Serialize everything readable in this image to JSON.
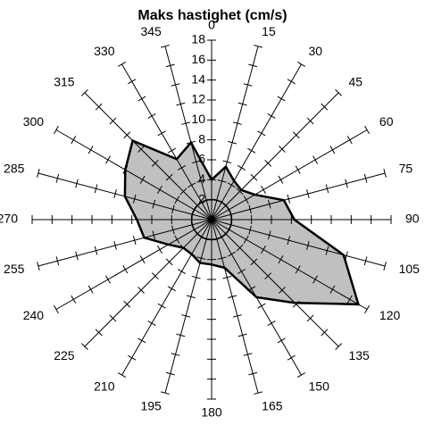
{
  "chart_data": {
    "type": "radar",
    "title": "Maks hastighet (cm/s)",
    "categories": [
      "0",
      "15",
      "30",
      "45",
      "60",
      "75",
      "90",
      "105",
      "120",
      "135",
      "150",
      "165",
      "180",
      "195",
      "210",
      "225",
      "240",
      "255",
      "270",
      "285",
      "300",
      "315",
      "330",
      "345"
    ],
    "values": [
      4,
      5.5,
      4.5,
      4.2,
      5,
      7.5,
      8.3,
      13.7,
      17,
      11.8,
      9,
      5,
      4.5,
      4.5,
      4,
      4,
      5,
      7,
      7.5,
      9,
      10,
      11.2,
      7,
      8
    ],
    "color": "#c0c0c0",
    "ylim": [
      0,
      18
    ],
    "yticks": [
      2,
      4,
      6,
      8,
      10,
      12,
      14,
      16,
      18
    ]
  }
}
